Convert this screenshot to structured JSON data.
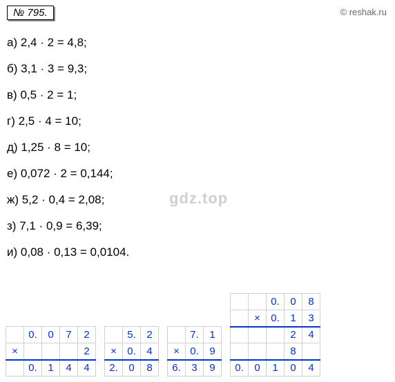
{
  "header": {
    "problem_number": "№ 795."
  },
  "attribution": "© reshak.ru",
  "watermark": "gdz.top",
  "equations": [
    {
      "label": "а)",
      "expr": "2,4 · 2 = 4,8;"
    },
    {
      "label": "б)",
      "expr": "3,1 · 3 = 9,3;"
    },
    {
      "label": "в)",
      "expr": "0,5 · 2 = 1;"
    },
    {
      "label": "г)",
      "expr": "2,5 · 4 = 10;"
    },
    {
      "label": "д)",
      "expr": "1,25 · 8 = 10;"
    },
    {
      "label": "е)",
      "expr": "0,072 · 2 = 0,144;"
    },
    {
      "label": "ж)",
      "expr": "5,2 · 0,4 = 2,08;"
    },
    {
      "label": "з)",
      "expr": "7,1 · 0,9 = 6,39;"
    },
    {
      "label": "и)",
      "expr": "0,08 · 0,13 = 0,0104."
    }
  ],
  "tables": {
    "t1": {
      "r1": [
        "",
        "0.",
        "0",
        "7",
        "2"
      ],
      "r2": [
        "×",
        "",
        "",
        "",
        "2"
      ],
      "r3": [
        "",
        "0.",
        "1",
        "4",
        "4"
      ]
    },
    "t2": {
      "r1": [
        "",
        "5.",
        "2"
      ],
      "r2": [
        "×",
        "0.",
        "4"
      ],
      "r3": [
        "2.",
        "0",
        "8"
      ]
    },
    "t3": {
      "r1": [
        "",
        "7.",
        "1"
      ],
      "r2": [
        "×",
        "0.",
        "9"
      ],
      "r3": [
        "6.",
        "3",
        "9"
      ]
    },
    "t4": {
      "r1": [
        "",
        "",
        "0.",
        "0",
        "8"
      ],
      "r2": [
        "",
        "×",
        "0.",
        "1",
        "3"
      ],
      "r3": [
        "",
        "",
        "",
        "2",
        "4"
      ],
      "r4": [
        "",
        "",
        "",
        "8",
        ""
      ],
      "r5": [
        "0.",
        "0",
        "1",
        "0",
        "4"
      ]
    }
  },
  "styles": {
    "text_color": "#000000",
    "cell_text_color": "#0033cc",
    "cell_border_color": "#d0d0d0",
    "hline_color": "#0033cc",
    "background_color": "#ffffff"
  }
}
